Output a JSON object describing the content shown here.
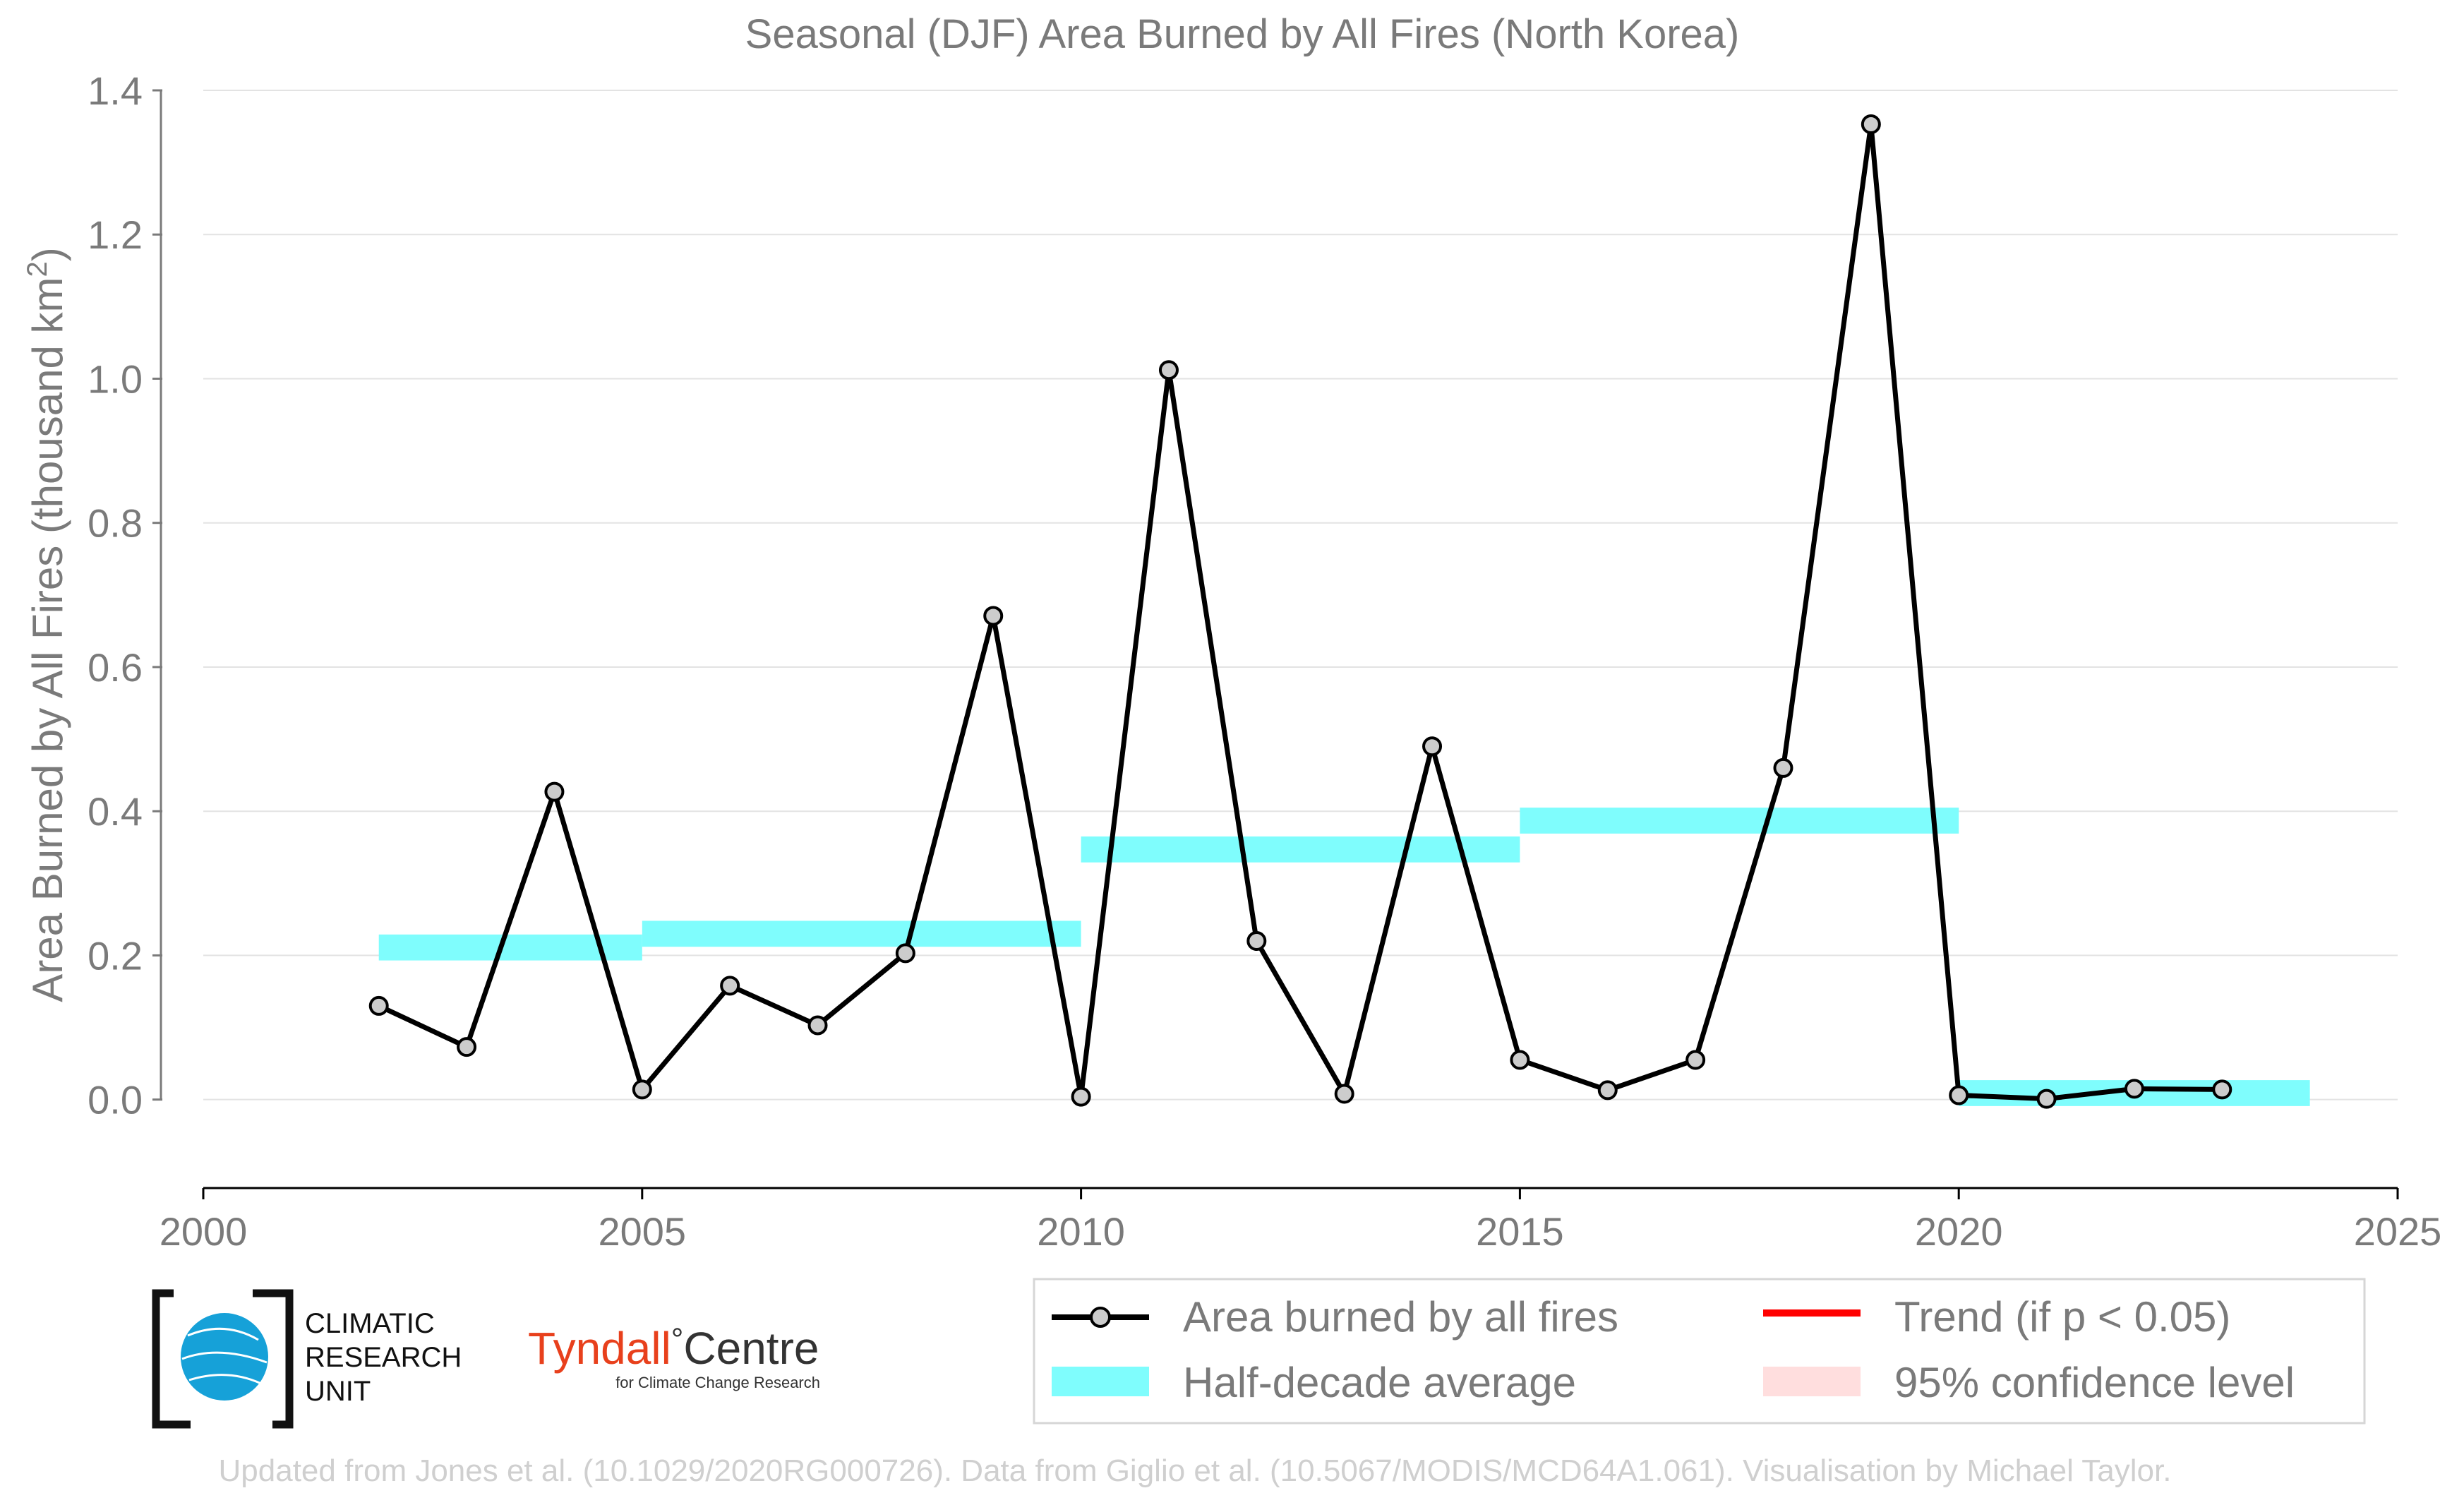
{
  "chart_data": {
    "type": "line",
    "title": "Seasonal (DJF) Area Burned by All Fires (North Korea)",
    "ylabel": "Area Burned by All Fires (thousand km²)",
    "ylabel_parts": {
      "main": "Area Burned by All Fires (thousand km",
      "sup": "2",
      "close": ")"
    },
    "xlabel": "",
    "xlim": [
      2000,
      2025
    ],
    "ylim": [
      -0.11,
      1.4
    ],
    "x_ticks": [
      2000,
      2005,
      2010,
      2015,
      2020,
      2025
    ],
    "y_ticks": [
      0.0,
      0.2,
      0.4,
      0.6,
      0.8,
      1.0,
      1.2,
      1.4
    ],
    "y_tick_labels": [
      "0.0",
      "0.2",
      "0.4",
      "0.6",
      "0.8",
      "1.0",
      "1.2",
      "1.4"
    ],
    "grid": "horizontal",
    "series": [
      {
        "name": "Area burned by all fires",
        "color": "#000000",
        "marker_fill": "#cccccc",
        "x": [
          2002,
          2003,
          2004,
          2005,
          2006,
          2007,
          2008,
          2009,
          2010,
          2011,
          2012,
          2013,
          2014,
          2015,
          2016,
          2017,
          2018,
          2019,
          2020,
          2021,
          2022,
          2023
        ],
        "values": [
          0.13,
          0.073,
          0.427,
          0.014,
          0.158,
          0.103,
          0.203,
          0.671,
          0.004,
          1.012,
          0.22,
          0.008,
          0.49,
          0.055,
          0.013,
          0.055,
          0.46,
          1.353,
          0.006,
          0.001,
          0.015,
          0.014
        ]
      }
    ],
    "half_decade_average": {
      "name": "Half-decade average",
      "color": "#7ffdfd",
      "segments": [
        {
          "x0": 2002,
          "x1": 2005,
          "value": 0.211
        },
        {
          "x0": 2005,
          "x1": 2010,
          "value": 0.23
        },
        {
          "x0": 2010,
          "x1": 2015,
          "value": 0.347
        },
        {
          "x0": 2015,
          "x1": 2020,
          "value": 0.387
        },
        {
          "x0": 2020,
          "x1": 2024,
          "value": 0.009
        }
      ]
    },
    "legend": {
      "placement": "bottom-right",
      "entries": [
        {
          "label": "Area burned by all fires",
          "kind": "line-marker",
          "color": "#000000"
        },
        {
          "label": "Trend (if p < 0.05)",
          "kind": "line",
          "color": "#ff0000"
        },
        {
          "label": "Half-decade average",
          "kind": "band",
          "color": "#7ffdfd"
        },
        {
          "label": "95% confidence level",
          "kind": "band",
          "color": "#ffdede"
        }
      ]
    },
    "footer": "Updated from Jones et al. (10.1029/2020RG000726). Data from Giglio et al. (10.5067/MODIS/MCD64A1.061). Visualisation by Michael Taylor."
  },
  "logos": {
    "cru": [
      "CLIMATIC",
      "RESEARCH",
      "UNIT"
    ],
    "tyndall_main": "Tyndall",
    "tyndall_degree": "°",
    "tyndall_centre": "Centre",
    "tyndall_sub": "for Climate Change Research",
    "tyndall_color": "#e8401c"
  }
}
